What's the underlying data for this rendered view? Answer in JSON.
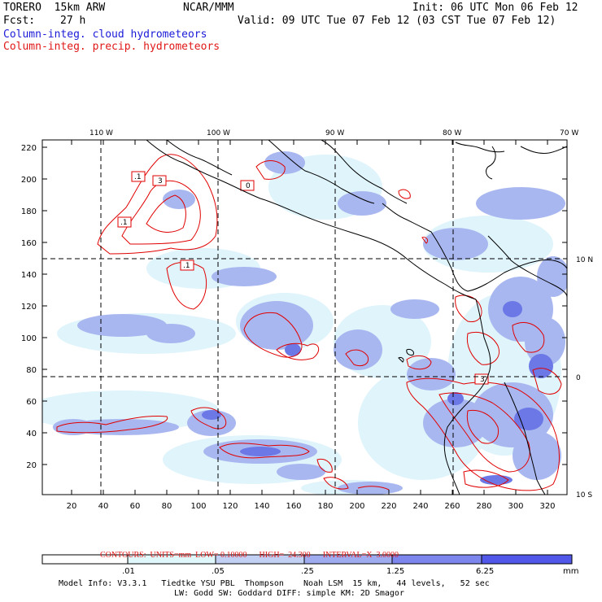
{
  "header": {
    "model": "TORERO  15km ARW",
    "center": "NCAR/MMM",
    "init": "Init: 06 UTC Mon 06 Feb 12",
    "fcst_label": "Fcst:",
    "fcst_value": "27 h",
    "valid": "Valid: 09 UTC Tue 07 Feb 12 (03 CST Tue 07 Feb 12)",
    "line_blue": "Column-integ. cloud hydrometeors",
    "line_red": "Column-integ. precip. hydrometeors"
  },
  "map": {
    "lon_labels": [
      "110 W",
      "100 W",
      "90 W",
      "80 W",
      "70 W"
    ],
    "lat_labels": [
      "10 N",
      "0",
      "10 S"
    ],
    "y_ticks": [
      "220",
      "200",
      "180",
      "160",
      "140",
      "120",
      "100",
      "80",
      "60",
      "40",
      "20"
    ],
    "x_ticks": [
      "20",
      "40",
      "60",
      "80",
      "100",
      "120",
      "140",
      "160",
      "180",
      "200",
      "220",
      "240",
      "260",
      "280",
      "300",
      "320"
    ],
    "contour_labels": [
      ".1",
      "3",
      ".1",
      "0",
      ".1",
      "3"
    ],
    "colors": {
      "cloud_light": "#dff4fb",
      "cloud_mid": "#a9b7f0",
      "cloud_dark": "#6b78e6",
      "precip_line": "#e00000",
      "coast": "#000000"
    }
  },
  "contours_line": {
    "prefix": "CONTOURS:  UNITS=mm  LOW= 0.10000",
    "high": "HIGH=  24.300",
    "interval": "INTERVAL=X  3.0000"
  },
  "colorbar": {
    "labels": [
      ".01",
      ".05",
      ".25",
      "1.25",
      "6.25"
    ],
    "unit": "mm",
    "colors": [
      "#ffffff",
      "#e0f7fb",
      "#c2d0f4",
      "#a0acf0",
      "#7d86ec",
      "#5157e9",
      "#1a18e6"
    ]
  },
  "footer": {
    "line1": "Model Info: V3.3.1   Tiedtke YSU PBL  Thompson    Noah LSM  15 km,   44 levels,   52 sec",
    "line2": "LW: Godd SW: Goddard DIFF: simple KM: 2D Smagor"
  }
}
